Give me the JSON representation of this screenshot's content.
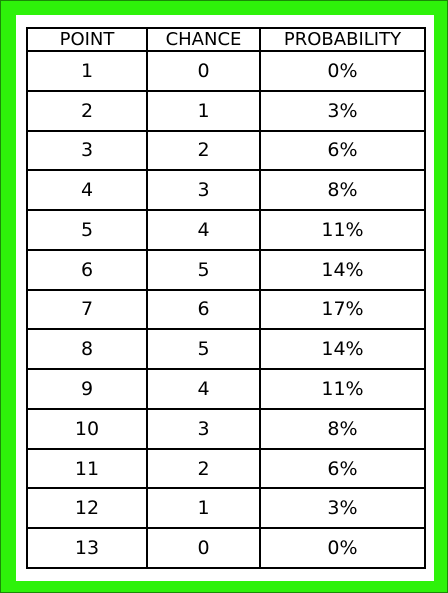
{
  "table": {
    "headers": [
      "POINT",
      "CHANCE",
      "PROBABILITY"
    ],
    "rows": [
      [
        "1",
        "0",
        "0%"
      ],
      [
        "2",
        "1",
        "3%"
      ],
      [
        "3",
        "2",
        "6%"
      ],
      [
        "4",
        "3",
        "8%"
      ],
      [
        "5",
        "4",
        "11%"
      ],
      [
        "6",
        "5",
        "14%"
      ],
      [
        "7",
        "6",
        "17%"
      ],
      [
        "8",
        "5",
        "14%"
      ],
      [
        "9",
        "4",
        "11%"
      ],
      [
        "10",
        "3",
        "8%"
      ],
      [
        "11",
        "2",
        "6%"
      ],
      [
        "12",
        "1",
        "3%"
      ],
      [
        "13",
        "0",
        "0%"
      ]
    ]
  },
  "colors": {
    "frame": "#2ef20a",
    "sheet": "#ffffff",
    "grid": "#000000"
  }
}
